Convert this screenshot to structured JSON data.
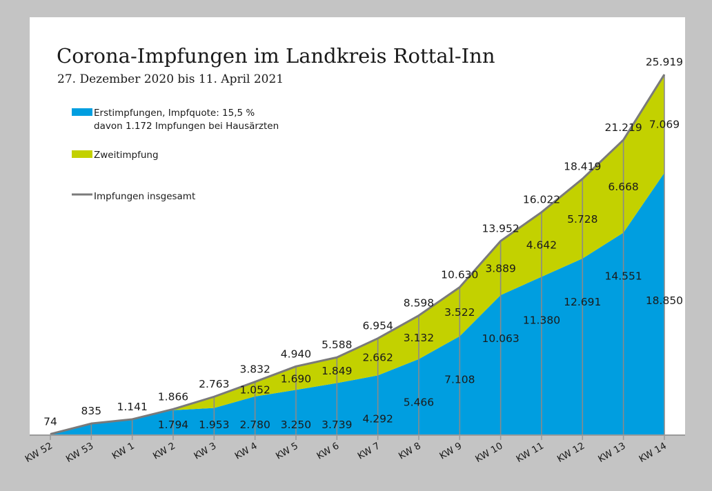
{
  "chart_data": {
    "type": "area",
    "title": "Corona-Impfungen im Landkreis Rottal-Inn",
    "subtitle": "27. Dezember 2020 bis 11. April 2021",
    "categories": [
      "KW 52",
      "KW 53",
      "KW 1",
      "KW 2",
      "KW 3",
      "KW 4",
      "KW 5",
      "KW 6",
      "KW 7",
      "KW 8",
      "KW 9",
      "KW 10",
      "KW 11",
      "KW 12",
      "KW 13",
      "KW 14"
    ],
    "series": [
      {
        "name": "Erstimpfungen, Impfquote: 15,5 %",
        "color": "#009ee0",
        "values": [
          74,
          835,
          1141,
          1794,
          1953,
          2780,
          3250,
          3739,
          4292,
          5466,
          7108,
          10063,
          11380,
          12691,
          14551,
          18850
        ],
        "labels": [
          "",
          "",
          "",
          "1.794",
          "1.953",
          "2.780",
          "3.250",
          "3.739",
          "4.292",
          "5.466",
          "7.108",
          "10.063",
          "11.380",
          "12.691",
          "14.551",
          "18.850"
        ]
      },
      {
        "name": "Zweitimpfung",
        "color": "#c3d100",
        "values": [
          0,
          0,
          0,
          72,
          810,
          1052,
          1690,
          1849,
          2662,
          3132,
          3522,
          3889,
          4642,
          5728,
          6668,
          7069
        ],
        "labels": [
          "",
          "",
          "",
          "",
          "",
          "1.052",
          "1.690",
          "1.849",
          "2.662",
          "3.132",
          "3.522",
          "3.889",
          "4.642",
          "5.728",
          "6.668",
          "7.069"
        ]
      },
      {
        "name": "Impfungen insgesamt",
        "color": "#7a7a7a",
        "values": [
          74,
          835,
          1141,
          1866,
          2763,
          3832,
          4940,
          5588,
          6954,
          8598,
          10630,
          13952,
          16022,
          18419,
          21219,
          25919
        ],
        "labels": [
          "74",
          "835",
          "1.141",
          "1.866",
          "2.763",
          "3.832",
          "4.940",
          "5.588",
          "6.954",
          "8.598",
          "10.630",
          "13.952",
          "16.022",
          "18.419",
          "21.219",
          "25.919"
        ]
      }
    ],
    "legend": [
      {
        "line1": "Erstimpfungen, Impfquote: 15,5 %",
        "line2": "davon 1.172 Impfungen bei Hausärzten",
        "color": "#009ee0",
        "kind": "swatch"
      },
      {
        "line1": "Zweitimpfung",
        "line2": "",
        "color": "#c3d100",
        "kind": "swatch"
      },
      {
        "line1": "Impfungen insgesamt",
        "line2": "",
        "color": "#7a7a7a",
        "kind": "line"
      }
    ],
    "legend_position": "top-left",
    "ylim": [
      0,
      25919
    ],
    "grid": false,
    "xlabel": "",
    "ylabel": ""
  },
  "colors": {
    "background": "#c4c4c4",
    "panel": "#ffffff",
    "axis": "#9a9a9a",
    "text": "#1a1a1a",
    "dropline": "#8a8a8a"
  }
}
